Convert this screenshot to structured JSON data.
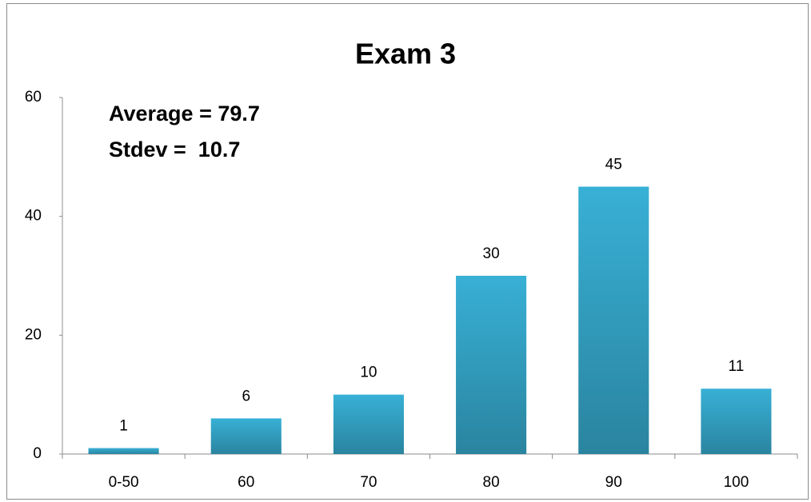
{
  "chart_data": {
    "type": "bar",
    "title": "Exam 3",
    "annotations": [
      "Average = 79.7",
      "Stdev =  10.7"
    ],
    "categories": [
      "0-50",
      "60",
      "70",
      "80",
      "90",
      "100"
    ],
    "values": [
      1,
      6,
      10,
      30,
      45,
      11
    ],
    "color": "#38b0d5",
    "ylim": [
      0,
      60
    ],
    "yticks": [
      0,
      20,
      40,
      60
    ],
    "grid": false
  }
}
